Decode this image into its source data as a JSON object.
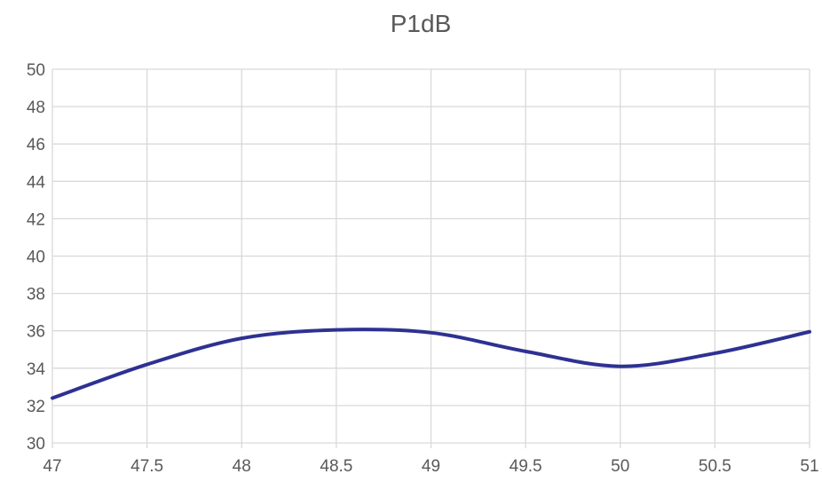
{
  "chart_data": {
    "type": "line",
    "title": "P1dB",
    "xlabel": "",
    "ylabel": "",
    "xlim": [
      47,
      51
    ],
    "ylim": [
      30,
      50
    ],
    "x_ticks": [
      "47",
      "47.5",
      "48",
      "48.5",
      "49",
      "49.5",
      "50",
      "50.5",
      "51"
    ],
    "y_ticks": [
      "30",
      "32",
      "34",
      "36",
      "38",
      "40",
      "42",
      "44",
      "46",
      "48",
      "50"
    ],
    "grid": true,
    "smooth": true,
    "line_color": "#2e3192",
    "series": [
      {
        "x": [
          47,
          47.5,
          48,
          48.5,
          49,
          49.5,
          50,
          50.5,
          51
        ],
        "y": [
          32.4,
          34.2,
          35.6,
          36.05,
          35.9,
          34.9,
          34.1,
          34.8,
          35.95
        ]
      }
    ]
  }
}
